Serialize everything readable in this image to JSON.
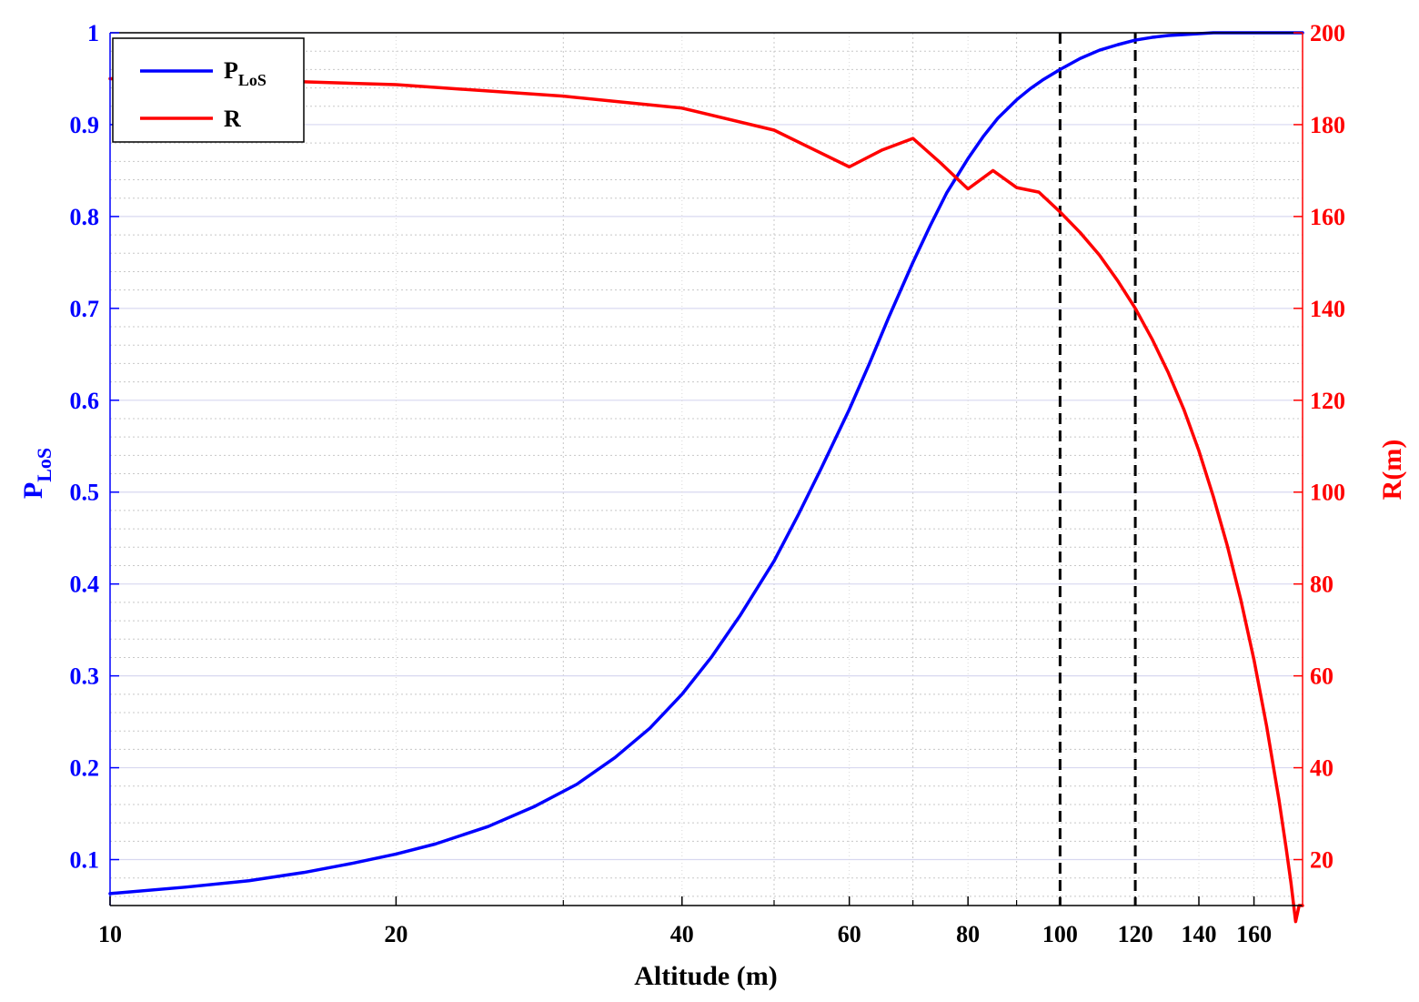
{
  "chart_data": {
    "type": "line",
    "xlabel": "Altitude (m)",
    "ylabel_left": "P",
    "ylabel_left_sub": "LoS",
    "ylabel_right": "R(m)",
    "x_scale": "log",
    "xlim": [
      10,
      180
    ],
    "ylim_left": [
      0.05,
      1
    ],
    "ylim_right": [
      10,
      200
    ],
    "x_ticks": [
      10,
      20,
      40,
      60,
      80,
      100,
      120,
      140,
      160
    ],
    "x_tick_labels": [
      "10",
      "20",
      "40",
      "60",
      "80",
      "100",
      "120",
      "140",
      "160"
    ],
    "y_left_ticks": [
      0.1,
      0.2,
      0.3,
      0.4,
      0.5,
      0.6,
      0.7,
      0.8,
      0.9,
      1
    ],
    "y_left_tick_labels": [
      "0.1",
      "0.2",
      "0.3",
      "0.4",
      "0.5",
      "0.6",
      "0.7",
      "0.8",
      "0.9",
      "1"
    ],
    "y_right_ticks": [
      20,
      40,
      60,
      80,
      100,
      120,
      140,
      160,
      180,
      200
    ],
    "y_right_tick_labels": [
      "20",
      "40",
      "60",
      "80",
      "100",
      "120",
      "140",
      "160",
      "180",
      "200"
    ],
    "grid": true,
    "legend_position": "top-left",
    "vertical_lines": [
      100,
      120
    ],
    "series": [
      {
        "name": "P",
        "name_sub": "LoS",
        "axis": "left",
        "color": "#0000ff",
        "x": [
          10,
          12,
          14,
          16,
          18,
          20,
          22,
          25,
          28,
          31,
          34,
          37,
          40,
          43,
          46,
          50,
          53,
          56,
          60,
          63,
          66,
          70,
          73,
          76,
          80,
          83,
          86,
          90,
          93,
          96,
          100,
          105,
          110,
          115,
          120,
          125,
          130,
          135,
          140,
          145,
          150,
          160,
          170,
          180
        ],
        "y": [
          0.063,
          0.07,
          0.077,
          0.086,
          0.096,
          0.106,
          0.117,
          0.136,
          0.158,
          0.182,
          0.211,
          0.243,
          0.28,
          0.321,
          0.365,
          0.425,
          0.475,
          0.525,
          0.59,
          0.64,
          0.69,
          0.75,
          0.79,
          0.826,
          0.863,
          0.887,
          0.907,
          0.927,
          0.939,
          0.949,
          0.96,
          0.972,
          0.981,
          0.987,
          0.992,
          0.995,
          0.997,
          0.998,
          0.999,
          1,
          1,
          1,
          1,
          1
        ]
      },
      {
        "name": "R",
        "axis": "right",
        "color": "#ff0000",
        "x": [
          10,
          14,
          20,
          30,
          40,
          50,
          60,
          65,
          70,
          75,
          80,
          85,
          90,
          95,
          100,
          105,
          110,
          115,
          120,
          125,
          130,
          135,
          140,
          145,
          150,
          155,
          160,
          165,
          170,
          173,
          175,
          177,
          178.5,
          179.5,
          180
        ],
        "y": [
          190,
          189.7,
          188.7,
          186.2,
          183.6,
          178.8,
          170.8,
          174.5,
          177,
          171.5,
          166,
          170,
          166.3,
          165.3,
          161,
          156.5,
          151.6,
          146,
          140,
          133.3,
          126,
          118,
          109,
          99,
          88.3,
          76.5,
          63.5,
          49,
          33,
          22.4,
          15,
          6.5,
          10,
          10,
          10
        ]
      }
    ]
  }
}
